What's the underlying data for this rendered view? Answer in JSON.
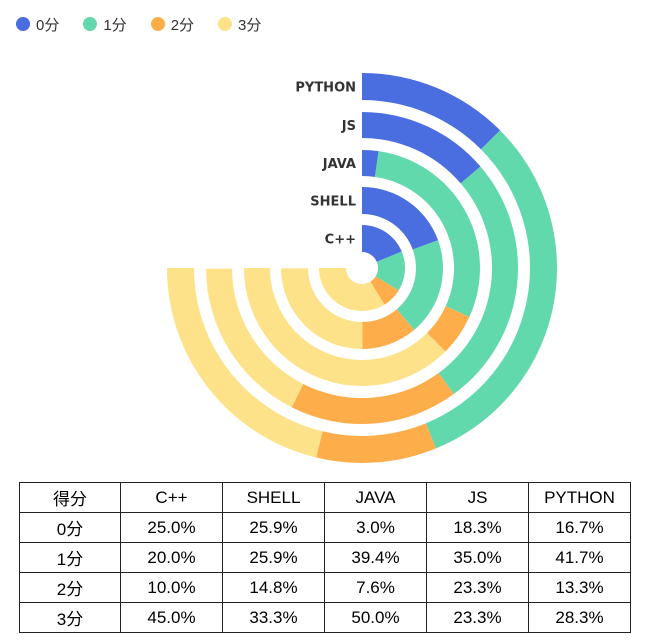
{
  "chart_data": {
    "type": "polar-bar",
    "legend": [
      {
        "name": "0分",
        "color": "#4a6ee0"
      },
      {
        "name": "1分",
        "color": "#62d9ad"
      },
      {
        "name": "2分",
        "color": "#fdae4b"
      },
      {
        "name": "3分",
        "color": "#fee28a"
      }
    ],
    "categories": [
      "PYTHON",
      "JS",
      "JAVA",
      "SHELL",
      "C++"
    ],
    "series": [
      {
        "name": "0分",
        "values": [
          16.7,
          18.3,
          3.0,
          25.9,
          25.0
        ]
      },
      {
        "name": "1分",
        "values": [
          41.7,
          35.0,
          39.4,
          25.9,
          20.0
        ]
      },
      {
        "name": "2分",
        "values": [
          13.3,
          23.3,
          7.6,
          14.8,
          10.0
        ]
      },
      {
        "name": "3分",
        "values": [
          28.3,
          23.3,
          50.0,
          33.3,
          45.0
        ]
      }
    ],
    "angle_max": 100,
    "start_angle": "top",
    "direction": "clockwise"
  },
  "table": {
    "corner": "得分",
    "columns": [
      "C++",
      "SHELL",
      "JAVA",
      "JS",
      "PYTHON"
    ],
    "rows": [
      {
        "label": "0分",
        "cells": [
          "25.0%",
          "25.9%",
          "3.0%",
          "18.3%",
          "16.7%"
        ]
      },
      {
        "label": "1分",
        "cells": [
          "20.0%",
          "25.9%",
          "39.4%",
          "35.0%",
          "41.7%"
        ]
      },
      {
        "label": "2分",
        "cells": [
          "10.0%",
          "14.8%",
          "7.6%",
          "23.3%",
          "13.3%"
        ]
      },
      {
        "label": "3分",
        "cells": [
          "45.0%",
          "33.3%",
          "50.0%",
          "23.3%",
          "28.3%"
        ]
      }
    ]
  }
}
